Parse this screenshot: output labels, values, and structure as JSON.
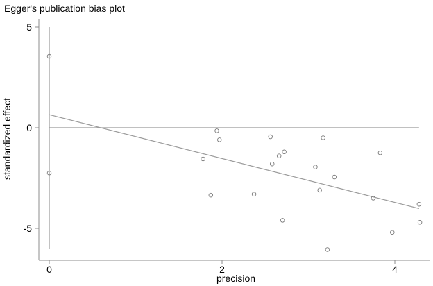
{
  "chart_data": {
    "type": "scatter",
    "title": "Egger's publication bias plot",
    "xlabel": "precision",
    "ylabel": "standardized effect",
    "xlim": [
      0,
      4.3
    ],
    "ylim": [
      -6.1,
      5
    ],
    "x_ticks": [
      0,
      2,
      4
    ],
    "y_ticks": [
      5,
      0,
      -5
    ],
    "grid": false,
    "points": [
      {
        "x": 0.0,
        "y": 3.55
      },
      {
        "x": 0.0,
        "y": -2.25
      },
      {
        "x": 1.78,
        "y": -1.55
      },
      {
        "x": 1.87,
        "y": -3.35
      },
      {
        "x": 1.94,
        "y": -0.15
      },
      {
        "x": 1.97,
        "y": -0.6
      },
      {
        "x": 2.37,
        "y": -3.3
      },
      {
        "x": 2.56,
        "y": -0.45
      },
      {
        "x": 2.58,
        "y": -1.8
      },
      {
        "x": 2.66,
        "y": -1.4
      },
      {
        "x": 2.7,
        "y": -4.6
      },
      {
        "x": 2.72,
        "y": -1.2
      },
      {
        "x": 3.08,
        "y": -1.95
      },
      {
        "x": 3.13,
        "y": -3.1
      },
      {
        "x": 3.17,
        "y": -0.5
      },
      {
        "x": 3.22,
        "y": -6.05
      },
      {
        "x": 3.3,
        "y": -2.45
      },
      {
        "x": 3.75,
        "y": -3.5
      },
      {
        "x": 3.83,
        "y": -1.25
      },
      {
        "x": 3.97,
        "y": -5.2
      },
      {
        "x": 4.28,
        "y": -3.8
      },
      {
        "x": 4.29,
        "y": -4.7
      }
    ],
    "regression_line": {
      "intercept": 0.65,
      "slope": -1.09,
      "x_range": [
        0,
        4.28
      ]
    },
    "reference_line": {
      "y": 0,
      "x_range": [
        0,
        4.28
      ]
    },
    "ci_bar": {
      "x": 0,
      "y_range": [
        -6.0,
        5.0
      ]
    }
  }
}
